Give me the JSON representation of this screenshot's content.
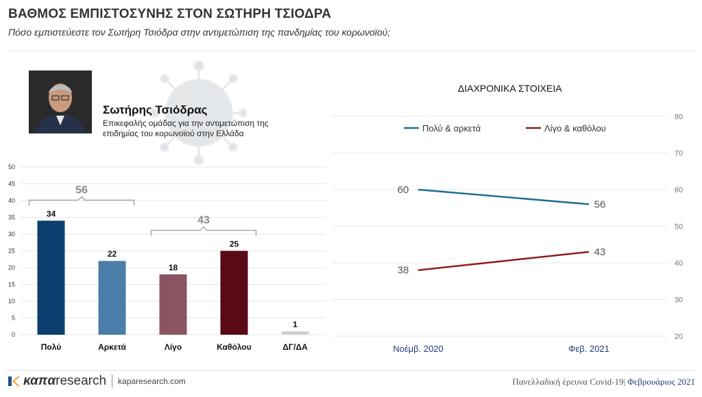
{
  "header": {
    "title": "ΒΑΘΜΟΣ ΕΜΠΙΣΤΟΣΥΝΗΣ ΣΤΟΝ ΣΩΤΗΡΗ ΤΣΙΟΔΡΑ",
    "subtitle": "Πόσο εμπιστεύεστε τον Σωτήρη Τσιόδρα στην αντιμετώπιση της πανδημίας του κορωνοϊού;"
  },
  "person": {
    "name": "Σωτήρης Τσιόδρας",
    "description": "Επικεφαλής ομάδας για την αντιμετώπιση της επιδημίας του κορωνοϊού στην Ελλάδα"
  },
  "line_title": "ΔΙΑΧΡΟΝΙΚΑ ΣΤΟΙΧΕΙΑ",
  "footer": {
    "logo_kapa": "καπα",
    "logo_research": "research",
    "site": "kaparesearch.com",
    "survey": "Πανελλαδική έρευνα Covid-19|",
    "month": "Φεβρουάριος 2021"
  },
  "colors": {
    "bar_poly": "#0d3f6e",
    "bar_arketa": "#4a7ea8",
    "bar_ligo": "#8a5560",
    "bar_katholou": "#5a0a14",
    "bar_dgda": "#d0d0d0",
    "line_blue": "#1d6e93",
    "line_red": "#8e1b1e",
    "bracket": "#999999"
  },
  "chart_data": [
    {
      "type": "bar",
      "categories": [
        "Πολύ",
        "Αρκετά",
        "Λίγο",
        "Καθόλου",
        "ΔΓ/ΔΑ"
      ],
      "values": [
        34,
        22,
        18,
        25,
        1
      ],
      "ylim": [
        0,
        50
      ],
      "yticks": [
        0,
        5,
        10,
        15,
        20,
        25,
        30,
        35,
        40,
        45,
        50
      ],
      "grid": true,
      "annotations": [
        {
          "label": "56",
          "span": [
            "Πολύ",
            "Αρκετά"
          ]
        },
        {
          "label": "43",
          "span": [
            "Λίγο",
            "Καθόλου"
          ]
        }
      ]
    },
    {
      "type": "line",
      "title": "ΔΙΑΧΡΟΝΙΚΑ ΣΤΟΙΧΕΙΑ",
      "x": [
        "Νοέμβ. 2020",
        "Φεβ. 2021"
      ],
      "series": [
        {
          "name": "Πολύ & αρκετά",
          "values": [
            60,
            56
          ]
        },
        {
          "name": "Λίγο & καθόλου",
          "values": [
            38,
            43
          ]
        }
      ],
      "ylim": [
        20,
        80
      ],
      "yticks": [
        20,
        30,
        40,
        50,
        60,
        70,
        80
      ],
      "y_axis_side": "right",
      "grid": true,
      "legend": "top"
    }
  ]
}
